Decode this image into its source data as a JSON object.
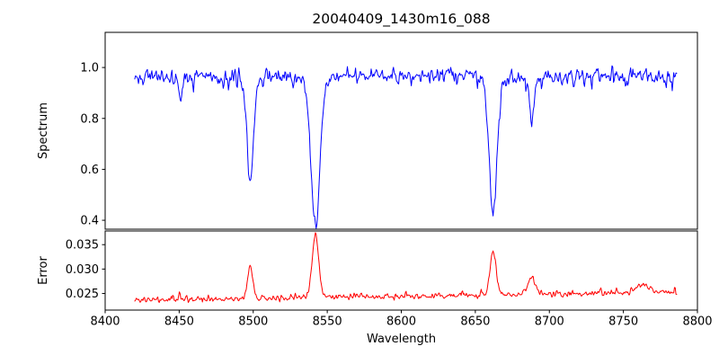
{
  "chart_data": {
    "type": "line",
    "title": "20040409_1430m16_088",
    "xlabel": "Wavelength",
    "xlim": [
      8400,
      8800
    ],
    "xticks": [
      8400,
      8450,
      8500,
      8550,
      8600,
      8650,
      8700,
      8750,
      8800
    ],
    "xtick_labels": [
      "8400",
      "8450",
      "8500",
      "8550",
      "8600",
      "8650",
      "8700",
      "8750",
      "8800"
    ],
    "x_data_range": [
      8420,
      8786
    ],
    "n_points": 730,
    "random_seed": 42,
    "legend": "none",
    "grid": false,
    "panels": [
      {
        "name": "spectrum",
        "ylabel": "Spectrum",
        "color": "#0000ff",
        "ylim": [
          0.365,
          1.138
        ],
        "yticks": [
          0.4,
          0.6,
          0.8,
          1.0
        ],
        "ytick_labels": [
          "0.4",
          "0.6",
          "0.8",
          "1.0"
        ],
        "continuum_level": 0.972,
        "noise": {
          "std": 0.018,
          "dip_probability": 0.25,
          "dip_max": 0.055
        },
        "absorption_lines": [
          {
            "center": 8451,
            "min_value": 0.875,
            "sigma": 1.6
          },
          {
            "center": 8498,
            "min_value": 0.555,
            "sigma": 2.2
          },
          {
            "center": 8542,
            "min_value": 0.4,
            "sigma": 3.2
          },
          {
            "center": 8662,
            "min_value": 0.44,
            "sigma": 2.8
          },
          {
            "center": 8688,
            "min_value": 0.8,
            "sigma": 1.8
          }
        ]
      },
      {
        "name": "error",
        "ylabel": "Error",
        "color": "#ff0000",
        "ylim": [
          0.0216,
          0.0378
        ],
        "yticks": [
          0.025,
          0.03,
          0.035
        ],
        "ytick_labels": [
          "0.025",
          "0.030",
          "0.035"
        ],
        "baseline_start": 0.0236,
        "baseline_end": 0.0252,
        "noise": {
          "std": 0.0004,
          "spike_probability": 0.12,
          "spike_max": 0.0012
        },
        "peaks": [
          {
            "center": 8498,
            "peak_value": 0.0305,
            "sigma": 1.8
          },
          {
            "center": 8542,
            "peak_value": 0.0373,
            "sigma": 2.2
          },
          {
            "center": 8662,
            "peak_value": 0.0335,
            "sigma": 2.0
          },
          {
            "center": 8688,
            "peak_value": 0.0282,
            "sigma": 2.5
          },
          {
            "center": 8762,
            "peak_value": 0.0268,
            "sigma": 4.0
          }
        ]
      }
    ]
  }
}
